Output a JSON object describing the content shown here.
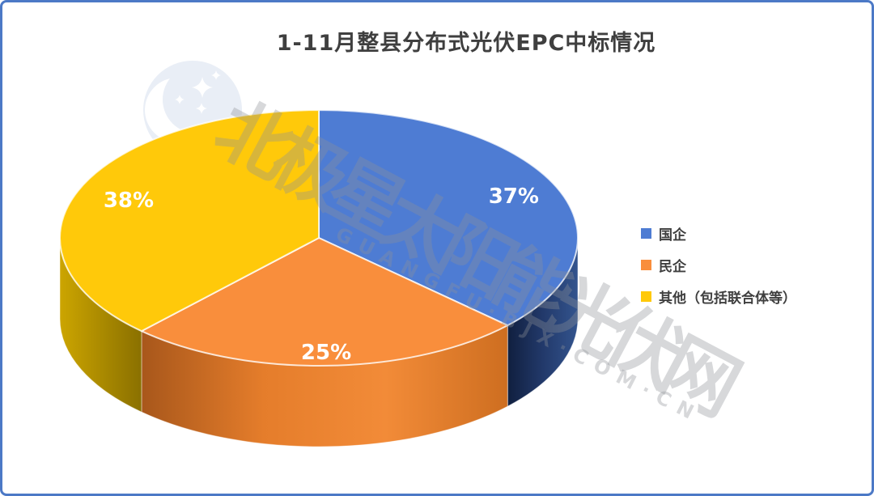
{
  "title": {
    "text": "1-11月整县分布式光伏EPC中标情况"
  },
  "chart_data": {
    "type": "pie",
    "style": "3d-pie",
    "title": "1-11月整县分布式光伏EPC中标情况",
    "data_labels": "percent",
    "legend_position": "right",
    "start_angle_deg": 0,
    "slices": [
      {
        "label": "国企",
        "value": 37,
        "display": "37%",
        "color": "#4E7CD3",
        "side_colors": [
          "#33548E",
          "#22396A",
          "#101F3F"
        ]
      },
      {
        "label": "民企",
        "value": 25,
        "display": "25%",
        "color": "#F98E3C",
        "side_colors": [
          "#CE6E20",
          "#F28B38",
          "#E57D2B",
          "#A8571B"
        ]
      },
      {
        "label": "其他（包括联合体等）",
        "value": 38,
        "display": "38%",
        "color": "#FFC90A",
        "side_colors": [
          "#8A7000",
          "#CCA500"
        ]
      }
    ]
  },
  "legend": {
    "items": [
      {
        "label": "国企",
        "color": "#4E7CD3"
      },
      {
        "label": "民企",
        "color": "#F98E3C"
      },
      {
        "label": "其他（包括联合体等）",
        "color": "#FFC90A"
      }
    ]
  },
  "watermark": {
    "logo_name": "bjx-polaris-moon-stars-logo",
    "line_cn": "北极星太阳能光伏网",
    "line_en": "GUANGFU·BJX·COM·CN"
  },
  "colors": {
    "frame_border": "#4C79C6",
    "title_text": "#3F3F3F",
    "legend_text": "#3F3F3F",
    "pie_label_text": "#FFFFFF",
    "logo_fill": "#E9EEF6"
  }
}
